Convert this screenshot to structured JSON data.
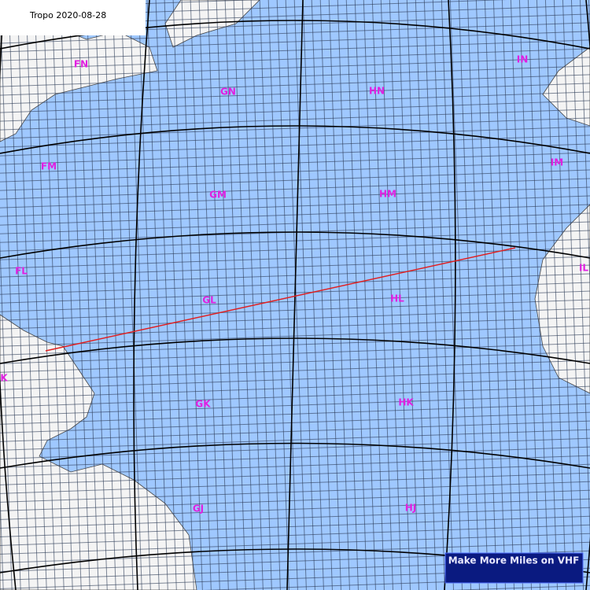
{
  "header": {
    "title": "Tropo 2020-08-28"
  },
  "fields": [
    {
      "label": "FN"
    },
    {
      "label": "GN"
    },
    {
      "label": "HN"
    },
    {
      "label": "IN"
    },
    {
      "label": "FM"
    },
    {
      "label": "GM"
    },
    {
      "label": "HM"
    },
    {
      "label": "IM"
    },
    {
      "label": "FL"
    },
    {
      "label": "GL"
    },
    {
      "label": "HL"
    },
    {
      "label": "IL"
    },
    {
      "label": "K"
    },
    {
      "label": "GK"
    },
    {
      "label": "HK"
    },
    {
      "label": "GJ"
    },
    {
      "label": "HJ"
    }
  ],
  "banner": {
    "text": "Make More Miles on VHF"
  }
}
